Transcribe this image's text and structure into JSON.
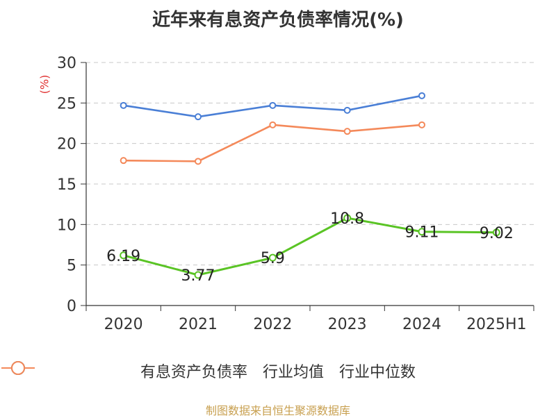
{
  "chart_data": {
    "type": "line",
    "title": "近年来有息资产负债率情况(%)",
    "unit_label": "(%)",
    "categories": [
      "2020",
      "2021",
      "2022",
      "2023",
      "2024",
      "2025H1"
    ],
    "ylim": [
      0,
      30
    ],
    "yticks": [
      0,
      5,
      10,
      15,
      20,
      25,
      30
    ],
    "grid": true,
    "legend_position": "bottom",
    "series": [
      {
        "name": "有息资产负债率",
        "color": "#5ac425",
        "values": [
          6.19,
          3.77,
          5.9,
          10.8,
          9.11,
          9.02
        ],
        "labels": [
          "6.19",
          "3.77",
          "5.9",
          "10.8",
          "9.11",
          "9.02"
        ]
      },
      {
        "name": "行业均值",
        "color": "#4a7fd6",
        "values": [
          24.7,
          23.3,
          24.7,
          24.1,
          25.9,
          null
        ]
      },
      {
        "name": "行业中位数",
        "color": "#f4895a",
        "values": [
          17.9,
          17.8,
          22.3,
          21.5,
          22.3,
          null
        ]
      }
    ]
  },
  "source": "制图数据来自恒生聚源数据库"
}
